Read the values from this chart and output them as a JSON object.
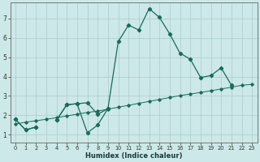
{
  "xlabel": "Humidex (Indice chaleur)",
  "x_values": [
    0,
    1,
    2,
    3,
    4,
    5,
    6,
    7,
    8,
    9,
    10,
    11,
    12,
    13,
    14,
    15,
    16,
    17,
    18,
    19,
    20,
    21,
    22,
    23
  ],
  "line1_y": [
    1.8,
    1.25,
    1.4,
    null,
    1.75,
    2.55,
    2.6,
    1.1,
    1.5,
    2.35,
    5.8,
    6.65,
    6.4,
    7.5,
    7.05,
    6.2,
    5.2,
    4.9,
    3.95,
    4.05,
    4.45,
    3.55,
    null,
    null
  ],
  "line2_y": [
    1.8,
    1.25,
    1.4,
    null,
    1.75,
    2.55,
    2.6,
    2.65,
    2.05,
    2.35,
    null,
    null,
    null,
    null,
    null,
    null,
    null,
    null,
    null,
    null,
    null,
    null,
    null,
    null
  ],
  "trend_y": [
    1.55,
    1.65,
    1.72,
    1.8,
    1.88,
    1.97,
    2.06,
    2.15,
    2.22,
    2.32,
    2.42,
    2.52,
    2.62,
    2.72,
    2.82,
    2.92,
    3.02,
    3.1,
    3.18,
    3.27,
    3.36,
    3.45,
    3.55,
    3.6
  ],
  "bg_color": "#cce8e8",
  "line_color": "#1a6b5a",
  "grid_color": "#aacccc",
  "ylim": [
    0.6,
    7.8
  ],
  "xlim": [
    -0.5,
    23.5
  ],
  "yticks": [
    1,
    2,
    3,
    4,
    5,
    6,
    7
  ],
  "xticks": [
    0,
    1,
    2,
    3,
    4,
    5,
    6,
    7,
    8,
    9,
    10,
    11,
    12,
    13,
    14,
    15,
    16,
    17,
    18,
    19,
    20,
    21,
    22,
    23
  ]
}
